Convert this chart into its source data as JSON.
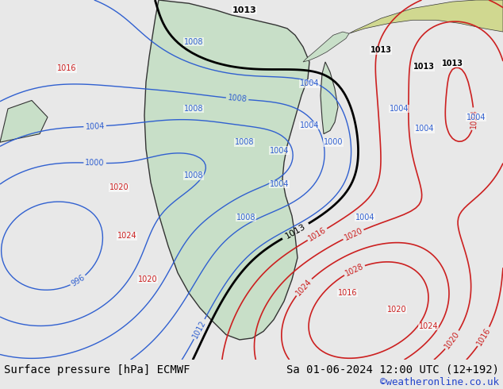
{
  "title_left": "Surface pressure [hPa] ECMWF",
  "title_right": "Sa 01-06-2024 12:00 UTC (12+192)",
  "credit": "©weatheronline.co.uk",
  "bg_color": "#e8e8e8",
  "map_bg": "#c8dfc8",
  "ocean_color": "#d8d8d8",
  "figsize": [
    6.34,
    4.9
  ],
  "dpi": 100,
  "isobar_blue_color": "#3060d0",
  "isobar_black_color": "#000000",
  "isobar_red_color": "#cc2020"
}
